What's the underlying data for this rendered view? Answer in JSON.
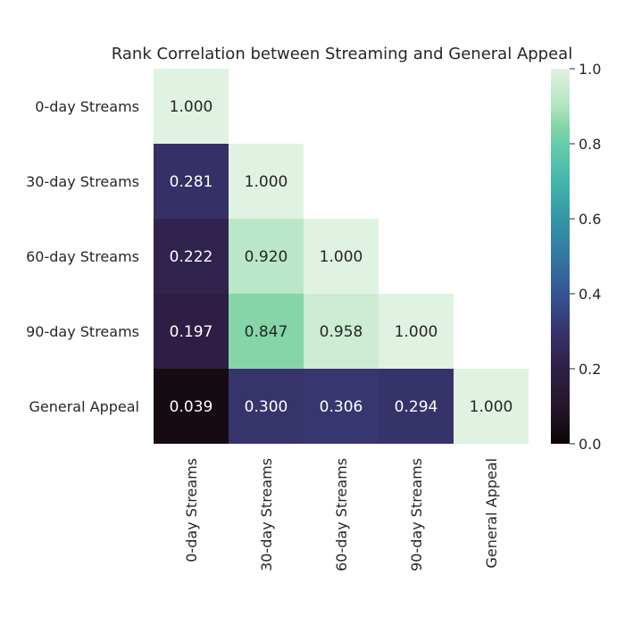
{
  "chart_data": {
    "type": "heatmap",
    "title": "Rank Correlation between Streaming and General Appeal",
    "row_labels": [
      "0-day Streams",
      "30-day Streams",
      "60-day Streams",
      "90-day Streams",
      "General Appeal"
    ],
    "col_labels": [
      "0-day Streams",
      "30-day Streams",
      "60-day Streams",
      "90-day Streams",
      "General Appeal"
    ],
    "mask": "upper-triangle",
    "values": [
      [
        1.0
      ],
      [
        0.281,
        1.0
      ],
      [
        0.222,
        0.92,
        1.0
      ],
      [
        0.197,
        0.847,
        0.958,
        1.0
      ],
      [
        0.039,
        0.3,
        0.306,
        0.294,
        1.0
      ]
    ],
    "value_format": "3 decimals",
    "colorbar": {
      "range": [
        0.0,
        1.0
      ],
      "ticks": [
        "0.0",
        "0.2",
        "0.4",
        "0.6",
        "0.8",
        "1.0"
      ],
      "colormap": "mako_r"
    },
    "colors": {
      "text_dark": "#262626",
      "text_light": "#ffffff"
    }
  }
}
